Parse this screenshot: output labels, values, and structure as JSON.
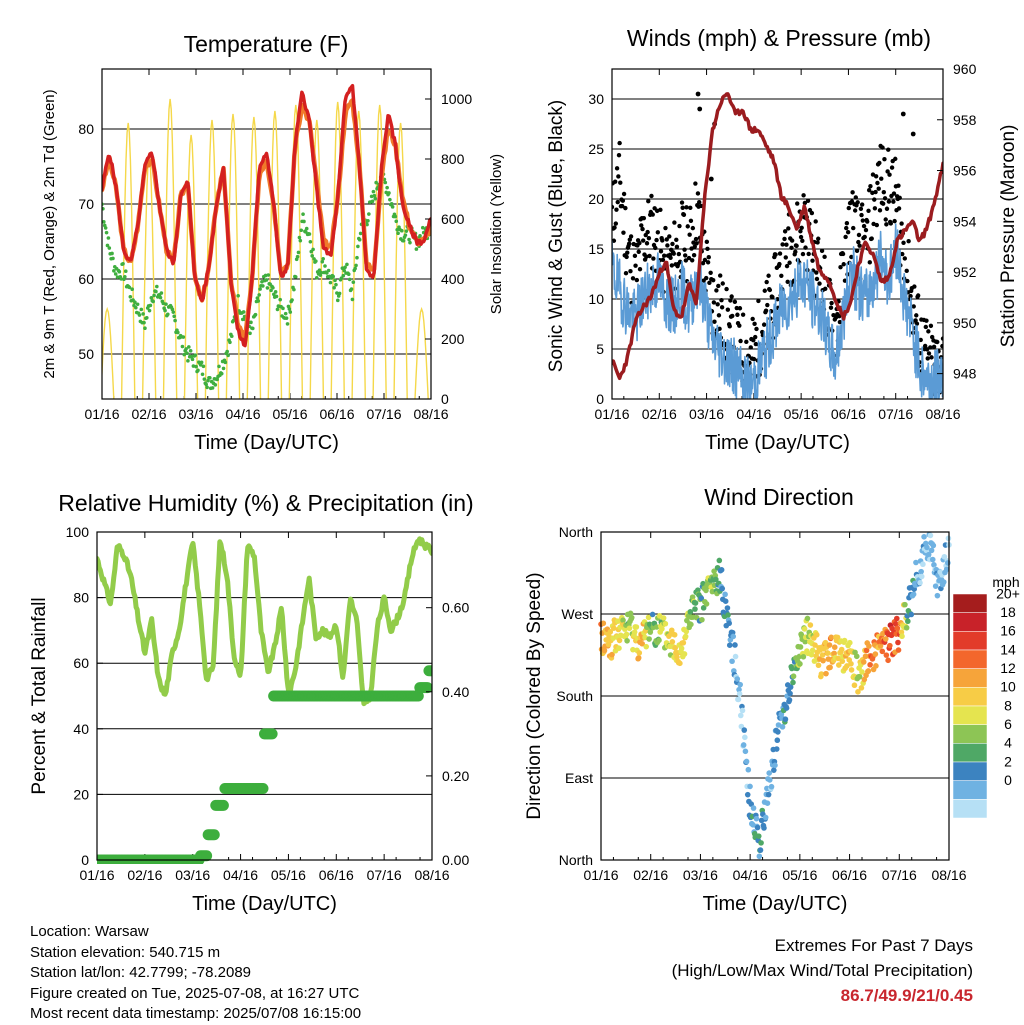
{
  "colors": {
    "temp_2m": "#d42020",
    "temp_9m": "#f07a2a",
    "dewpoint": "#3fae3f",
    "solar": "#f5d84a",
    "wind": "#5b9bd5",
    "gust": "#000000",
    "pressure": "#9b1c1f",
    "rh": "#92cc4a",
    "precip": "#3dae3d",
    "extremes": "#c8272e"
  },
  "chart_data": [
    {
      "id": "temperature",
      "type": "line",
      "title": "Temperature (F)",
      "xlabel": "Time (Day/UTC)",
      "ylabel": "2m & 9m T (Red, Orange) & 2m Td (Green)",
      "ylabel_right": "Solar Insolation (Yellow)",
      "x_ticks": [
        "01/16",
        "02/16",
        "03/16",
        "04/16",
        "05/16",
        "06/16",
        "07/16",
        "08/16"
      ],
      "ylim": [
        44,
        88
      ],
      "y_ticks": [
        50,
        60,
        70,
        80
      ],
      "ylim_right": [
        0,
        1100
      ],
      "y_ticks_right": [
        0,
        200,
        400,
        600,
        800,
        1000
      ],
      "grid": true,
      "series": [
        {
          "name": "2m T",
          "values": [
            72,
            77,
            72,
            64,
            62,
            67,
            75,
            77,
            70,
            64,
            62,
            71,
            73,
            60,
            57,
            62,
            70,
            75,
            60,
            53,
            51,
            60,
            75,
            77,
            70,
            60,
            62,
            78,
            85,
            81,
            72,
            64,
            63,
            71,
            84,
            86,
            75,
            61,
            60,
            74,
            82,
            78,
            70,
            67,
            65,
            65,
            68
          ]
        },
        {
          "name": "9m T",
          "values": [
            72,
            76,
            72,
            64,
            62,
            67,
            75,
            76,
            70,
            64,
            62,
            71,
            73,
            60,
            57,
            62,
            70,
            75,
            60,
            54,
            52,
            60,
            74,
            76,
            70,
            61,
            62,
            78,
            83,
            81,
            73,
            65,
            64,
            71,
            82,
            84,
            75,
            62,
            61,
            73,
            80,
            78,
            71,
            67,
            65,
            65,
            67
          ]
        },
        {
          "name": "2m Td",
          "values": [
            70,
            64,
            61,
            61,
            58,
            56,
            54,
            58,
            58,
            56,
            55,
            52,
            50,
            49,
            48,
            46,
            47,
            49,
            52,
            57,
            55,
            53,
            58,
            60,
            58,
            56,
            55,
            60,
            68,
            66,
            61,
            62,
            60,
            58,
            62,
            58,
            66,
            68,
            71,
            74,
            72,
            68,
            66,
            66,
            65,
            66,
            67
          ]
        }
      ],
      "solar_peaks": [
        300,
        920,
        820,
        1000,
        880,
        930,
        950,
        940,
        960,
        980,
        930,
        990,
        960,
        980,
        920,
        300
      ]
    },
    {
      "id": "winds_pressure",
      "type": "scatter",
      "title": "Winds (mph) & Pressure (mb)",
      "xlabel": "Time (Day/UTC)",
      "ylabel": "Sonic Wind & Gust (Blue, Black)",
      "ylabel_right": "Station Pressure (Maroon)",
      "x_ticks": [
        "01/16",
        "02/16",
        "03/16",
        "04/16",
        "05/16",
        "06/16",
        "07/16",
        "08/16"
      ],
      "ylim": [
        0,
        33
      ],
      "y_ticks": [
        0,
        5,
        10,
        15,
        20,
        25,
        30
      ],
      "ylim_right": [
        947,
        960
      ],
      "y_ticks_right": [
        948,
        950,
        952,
        954,
        956,
        958,
        960
      ],
      "grid": true,
      "series": [
        {
          "name": "Sonic Wind",
          "values": [
            13,
            11,
            9,
            8,
            10,
            11,
            12,
            10,
            9,
            11,
            9,
            12,
            10,
            6,
            5,
            4,
            3,
            2,
            1,
            3,
            5,
            7,
            9,
            10,
            11,
            12,
            10,
            9,
            6,
            4,
            8,
            13,
            11,
            10,
            12,
            14,
            12,
            15,
            10,
            7,
            3,
            2,
            2,
            3
          ]
        },
        {
          "name": "Gust",
          "values": [
            18,
            22,
            15,
            12,
            16,
            17,
            16,
            13,
            14,
            16,
            15,
            19,
            14,
            10,
            9,
            7,
            6,
            5,
            4,
            6,
            8,
            10,
            13,
            15,
            16,
            18,
            15,
            13,
            9,
            7,
            12,
            18,
            16,
            15,
            20,
            22,
            21,
            20,
            14,
            10,
            6,
            4,
            3,
            4
          ]
        },
        {
          "name": "Station Pressure",
          "values": [
            948.5,
            947.8,
            948.6,
            950.0,
            950.6,
            951.0,
            951.8,
            952.5,
            950.5,
            950.2,
            951.5,
            950.8,
            954.8,
            957.5,
            958.6,
            959.1,
            958.2,
            958.4,
            957.6,
            957.6,
            957.0,
            956.4,
            955.0,
            954.5,
            953.7,
            954.6,
            953.2,
            952.0,
            951.8,
            951.0,
            950.2,
            950.8,
            952.3,
            953.2,
            952.6,
            951.6,
            951.8,
            953.2,
            953.6,
            954.0,
            953.2,
            953.8,
            954.9,
            956.2
          ]
        }
      ],
      "gust_outliers": [
        {
          "x": 0.26,
          "y": 30.5
        },
        {
          "x": 0.265,
          "y": 29
        },
        {
          "x": 0.31,
          "y": 27.5
        },
        {
          "x": 0.3,
          "y": 22
        },
        {
          "x": 0.88,
          "y": 28.5
        },
        {
          "x": 0.91,
          "y": 26.5
        }
      ]
    },
    {
      "id": "rh_precip",
      "type": "line",
      "title": "Relative Humidity (%) & Precipitation (in)",
      "xlabel": "Time (Day/UTC)",
      "ylabel": "Percent & Total Rainfall",
      "x_ticks": [
        "01/16",
        "02/16",
        "03/16",
        "04/16",
        "05/16",
        "06/16",
        "07/16",
        "08/16"
      ],
      "ylim": [
        0,
        100
      ],
      "y_ticks": [
        0,
        20,
        40,
        60,
        80,
        100
      ],
      "ylim_right": [
        0,
        0.78
      ],
      "y_ticks_right": [
        "0.00",
        "0.20",
        "0.40",
        "0.60"
      ],
      "grid": true,
      "series": [
        {
          "name": "Relative Humidity",
          "values": [
            92,
            85,
            78,
            96,
            93,
            86,
            74,
            63,
            73,
            55,
            50,
            63,
            70,
            84,
            97,
            78,
            55,
            59,
            98,
            87,
            63,
            55,
            96,
            93,
            70,
            57,
            65,
            77,
            50,
            58,
            72,
            86,
            68,
            70,
            68,
            72,
            55,
            80,
            73,
            47,
            50,
            71,
            80,
            70,
            74,
            80,
            92,
            98,
            96,
            94
          ]
        },
        {
          "name": "Total Precipitation",
          "values": [
            0,
            0,
            0,
            0,
            0,
            0,
            0,
            0,
            0,
            0,
            0,
            0,
            0,
            0.01,
            0.06,
            0.13,
            0.17,
            0.17,
            0.17,
            0.17,
            0.17,
            0.3,
            0.39,
            0.39,
            0.39,
            0.39,
            0.39,
            0.39,
            0.39,
            0.39,
            0.39,
            0.39,
            0.39,
            0.39,
            0.39,
            0.39,
            0.39,
            0.39,
            0.39,
            0.39,
            0.41,
            0.45
          ]
        }
      ]
    },
    {
      "id": "wind_direction",
      "type": "scatter",
      "title": "Wind Direction",
      "xlabel": "Time (Day/UTC)",
      "ylabel": "Direction (Colored By Speed)",
      "x_ticks": [
        "01/16",
        "02/16",
        "03/16",
        "04/16",
        "05/16",
        "06/16",
        "07/16",
        "08/16"
      ],
      "y_ticks": [
        "North",
        "East",
        "South",
        "West",
        "North"
      ],
      "ylim": [
        0,
        360
      ],
      "grid": true,
      "colorbar_title": "mph",
      "colorbar_labels": [
        "20+",
        "18",
        "16",
        "14",
        "12",
        "10",
        "8",
        "6",
        "4",
        "2",
        "0"
      ],
      "colorbar_colors": [
        "#a51d1d",
        "#c82229",
        "#e23b2a",
        "#f3672c",
        "#f6a43a",
        "#f7cc46",
        "#e5e44f",
        "#8dc555",
        "#4fa866",
        "#3c83c0",
        "#6fb2e2",
        "#b6e0f5"
      ],
      "values": [
        {
          "x": 0.0,
          "dir": 245,
          "spd": 14
        },
        {
          "x": 0.03,
          "dir": 240,
          "spd": 12
        },
        {
          "x": 0.06,
          "dir": 250,
          "spd": 10
        },
        {
          "x": 0.09,
          "dir": 255,
          "spd": 8
        },
        {
          "x": 0.12,
          "dir": 235,
          "spd": 14
        },
        {
          "x": 0.15,
          "dir": 260,
          "spd": 6
        },
        {
          "x": 0.18,
          "dir": 250,
          "spd": 8
        },
        {
          "x": 0.22,
          "dir": 240,
          "spd": 10
        },
        {
          "x": 0.25,
          "dir": 230,
          "spd": 12
        },
        {
          "x": 0.28,
          "dir": 270,
          "spd": 8
        },
        {
          "x": 0.31,
          "dir": 280,
          "spd": 6
        },
        {
          "x": 0.34,
          "dir": 300,
          "spd": 8
        },
        {
          "x": 0.37,
          "dir": 310,
          "spd": 4
        },
        {
          "x": 0.4,
          "dir": 250,
          "spd": 3
        },
        {
          "x": 0.42,
          "dir": 180,
          "spd": 1
        },
        {
          "x": 0.45,
          "dir": 60,
          "spd": 3
        },
        {
          "x": 0.48,
          "dir": 20,
          "spd": 4
        },
        {
          "x": 0.5,
          "dir": 90,
          "spd": 2
        },
        {
          "x": 0.52,
          "dir": 150,
          "spd": 3
        },
        {
          "x": 0.55,
          "dir": 190,
          "spd": 5
        },
        {
          "x": 0.58,
          "dir": 230,
          "spd": 8
        },
        {
          "x": 0.61,
          "dir": 250,
          "spd": 10
        },
        {
          "x": 0.64,
          "dir": 220,
          "spd": 12
        },
        {
          "x": 0.67,
          "dir": 225,
          "spd": 14
        },
        {
          "x": 0.7,
          "dir": 230,
          "spd": 11
        },
        {
          "x": 0.73,
          "dir": 220,
          "spd": 12
        },
        {
          "x": 0.76,
          "dir": 200,
          "spd": 9
        },
        {
          "x": 0.79,
          "dir": 225,
          "spd": 16
        },
        {
          "x": 0.82,
          "dir": 230,
          "spd": 14
        },
        {
          "x": 0.85,
          "dir": 240,
          "spd": 18
        },
        {
          "x": 0.88,
          "dir": 250,
          "spd": 16
        },
        {
          "x": 0.91,
          "dir": 280,
          "spd": 4
        },
        {
          "x": 0.93,
          "dir": 320,
          "spd": 2
        },
        {
          "x": 0.95,
          "dir": 350,
          "spd": 1
        },
        {
          "x": 0.97,
          "dir": 300,
          "spd": 2
        },
        {
          "x": 0.99,
          "dir": 340,
          "spd": 1
        }
      ]
    }
  ],
  "footer": {
    "location": "Location: Warsaw",
    "elevation": "Station elevation: 540.715 m",
    "latlon": "Station lat/lon: 42.7799; -78.2089",
    "created": "Figure created on Tue, 2025-07-08, at 16:27 UTC",
    "latest": "Most recent data timestamp: 2025/07/08 16:15:00"
  },
  "extremes": {
    "title": "Extremes For Past 7 Days",
    "subtitle": "(High/Low/Max Wind/Total Precipitation)",
    "values": "86.7/49.9/21/0.45"
  }
}
